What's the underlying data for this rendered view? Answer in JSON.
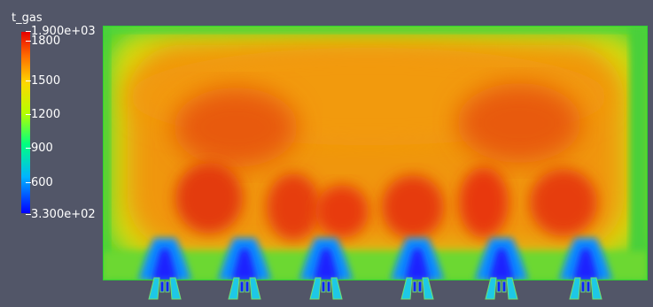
{
  "legend": {
    "title": "t_gas",
    "max_label": "1.900e+03",
    "min_label": "3.300e+02",
    "ticks": [
      "1800",
      "1500",
      "1200",
      "900",
      "600"
    ],
    "range": [
      330,
      1900
    ],
    "colormap": [
      "#0000ff",
      "#00b4ff",
      "#00ff80",
      "#b4ff00",
      "#ffd700",
      "#ff6a00",
      "#e60000"
    ]
  },
  "field": {
    "background_color": "#525668",
    "burner_count": 6
  }
}
